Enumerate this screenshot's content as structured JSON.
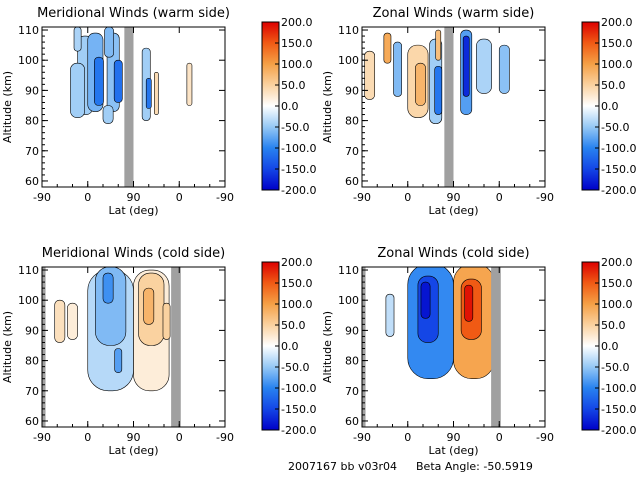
{
  "footer": {
    "run_id": "2007167 bb v03r04",
    "beta": "Beta Angle: -50.5919"
  },
  "chart_data": [
    {
      "type": "heatmap",
      "title": "Meridional Winds (warm side)",
      "xlabel": "Lat (deg)",
      "ylabel": "Altitude (km)",
      "x_ticks": [
        "-90",
        "0",
        "90",
        "0",
        "-90"
      ],
      "y_ticks": [
        "60",
        "70",
        "80",
        "90",
        "100",
        "110"
      ],
      "ylim": [
        58,
        111
      ],
      "colorbar": {
        "ticks": [
          "200.0",
          "150.0",
          "100.0",
          "50.0",
          "0.0",
          "-50.0",
          "-100.0",
          "-150.0",
          "-200.0"
        ],
        "range": [
          -200,
          200
        ]
      },
      "gray_bands": [
        [
          72,
          90
        ]
      ],
      "cells": [
        {
          "xc": -5,
          "yc": 95,
          "w": 30,
          "h": 26,
          "value": -45
        },
        {
          "xc": -20,
          "yc": 90,
          "w": 28,
          "h": 18,
          "value": -45
        },
        {
          "xc": 15,
          "yc": 96,
          "w": 30,
          "h": 26,
          "value": -65
        },
        {
          "xc": 22,
          "yc": 93,
          "w": 18,
          "h": 16,
          "value": -110
        },
        {
          "xc": 50,
          "yc": 96,
          "w": 24,
          "h": 26,
          "value": -55
        },
        {
          "xc": 60,
          "yc": 93,
          "w": 16,
          "h": 14,
          "value": -115
        },
        {
          "xc": 42,
          "yc": 106,
          "w": 18,
          "h": 10,
          "value": -60
        },
        {
          "xc": -20,
          "yc": 107,
          "w": 14,
          "h": 8,
          "value": -40
        },
        {
          "xc": 115,
          "yc": 92,
          "w": 16,
          "h": 24,
          "value": -45
        },
        {
          "xc": 120,
          "yc": 89,
          "w": 10,
          "h": 10,
          "value": -110
        },
        {
          "xc": 135,
          "yc": 89,
          "w": 8,
          "h": 14,
          "value": 40
        },
        {
          "xc": 200,
          "yc": 92,
          "w": 10,
          "h": 14,
          "value": 30
        },
        {
          "xc": 40,
          "yc": 82,
          "w": 20,
          "h": 6,
          "value": -45
        }
      ]
    },
    {
      "type": "heatmap",
      "title": "Zonal Winds (warm side)",
      "xlabel": "Lat (deg)",
      "ylabel": "Altitude (km)",
      "x_ticks": [
        "-90",
        "0",
        "90",
        "0",
        "-90"
      ],
      "y_ticks": [
        "60",
        "70",
        "80",
        "90",
        "100",
        "110"
      ],
      "ylim": [
        58,
        111
      ],
      "colorbar": {
        "ticks": [
          "200.0",
          "150.0",
          "100.0",
          "50.0",
          "0.0",
          "-50.0",
          "-100.0",
          "-150.0",
          "-200.0"
        ],
        "range": [
          -200,
          200
        ]
      },
      "gray_bands": [
        [
          72,
          90
        ]
      ],
      "cells": [
        {
          "xc": -75,
          "yc": 95,
          "w": 20,
          "h": 16,
          "value": 40
        },
        {
          "xc": -40,
          "yc": 104,
          "w": 14,
          "h": 10,
          "value": 90
        },
        {
          "xc": -20,
          "yc": 97,
          "w": 16,
          "h": 18,
          "value": -60
        },
        {
          "xc": 20,
          "yc": 93,
          "w": 40,
          "h": 24,
          "value": 45
        },
        {
          "xc": 25,
          "yc": 92,
          "w": 20,
          "h": 14,
          "value": 80
        },
        {
          "xc": 55,
          "yc": 93,
          "w": 24,
          "h": 28,
          "value": -45
        },
        {
          "xc": 60,
          "yc": 90,
          "w": 14,
          "h": 16,
          "value": -110
        },
        {
          "xc": 60,
          "yc": 105,
          "w": 10,
          "h": 10,
          "value": 70
        },
        {
          "xc": 115,
          "yc": 96,
          "w": 22,
          "h": 28,
          "value": -80
        },
        {
          "xc": 115,
          "yc": 98,
          "w": 12,
          "h": 20,
          "value": -170
        },
        {
          "xc": 150,
          "yc": 98,
          "w": 30,
          "h": 18,
          "value": -40
        },
        {
          "xc": 190,
          "yc": 97,
          "w": 20,
          "h": 16,
          "value": -55
        }
      ]
    },
    {
      "type": "heatmap",
      "title": "Meridional Winds (cold side)",
      "xlabel": "Lat (deg)",
      "ylabel": "Altitude (km)",
      "x_ticks": [
        "-90",
        "0",
        "90",
        "0",
        "-90"
      ],
      "y_ticks": [
        "60",
        "70",
        "80",
        "90",
        "100",
        "110"
      ],
      "ylim": [
        58,
        111
      ],
      "colorbar": {
        "ticks": [
          "200.0",
          "150.0",
          "100.0",
          "50.0",
          "0.0",
          "-50.0",
          "-100.0",
          "-150.0",
          "-200.0"
        ],
        "range": [
          -200,
          200
        ]
      },
      "gray_bands": [
        [
          -102,
          -83
        ],
        [
          164,
          183
        ]
      ],
      "cells": [
        {
          "xc": -55,
          "yc": 93,
          "w": 20,
          "h": 14,
          "value": 35
        },
        {
          "xc": -30,
          "yc": 93,
          "w": 20,
          "h": 12,
          "value": 20
        },
        {
          "xc": 45,
          "yc": 90,
          "w": 90,
          "h": 40,
          "value": -35
        },
        {
          "xc": 45,
          "yc": 98,
          "w": 60,
          "h": 26,
          "value": -60
        },
        {
          "xc": 40,
          "yc": 104,
          "w": 20,
          "h": 10,
          "value": -90
        },
        {
          "xc": 60,
          "yc": 80,
          "w": 14,
          "h": 8,
          "value": -80
        },
        {
          "xc": 125,
          "yc": 90,
          "w": 70,
          "h": 40,
          "value": 20
        },
        {
          "xc": 125,
          "yc": 97,
          "w": 50,
          "h": 24,
          "value": 50
        },
        {
          "xc": 120,
          "yc": 98,
          "w": 20,
          "h": 12,
          "value": 80
        },
        {
          "xc": 155,
          "yc": 93,
          "w": 14,
          "h": 12,
          "value": 50
        }
      ]
    },
    {
      "type": "heatmap",
      "title": "Zonal Winds (cold side)",
      "xlabel": "Lat (deg)",
      "ylabel": "Altitude (km)",
      "x_ticks": [
        "-90",
        "0",
        "90",
        "0",
        "-90"
      ],
      "y_ticks": [
        "60",
        "70",
        "80",
        "90",
        "100",
        "110"
      ],
      "ylim": [
        58,
        111
      ],
      "colorbar": {
        "ticks": [
          "200.0",
          "150.0",
          "100.0",
          "50.0",
          "0.0",
          "-50.0",
          "-100.0",
          "-150.0",
          "-200.0"
        ],
        "range": [
          -200,
          200
        ]
      },
      "gray_bands": [
        [
          -102,
          -83
        ],
        [
          164,
          183
        ]
      ],
      "cells": [
        {
          "xc": -35,
          "yc": 95,
          "w": 16,
          "h": 14,
          "value": -30
        },
        {
          "xc": 45,
          "yc": 93,
          "w": 90,
          "h": 38,
          "value": -95
        },
        {
          "xc": 40,
          "yc": 97,
          "w": 40,
          "h": 22,
          "value": -150
        },
        {
          "xc": 35,
          "yc": 100,
          "w": 18,
          "h": 12,
          "value": -185
        },
        {
          "xc": 130,
          "yc": 93,
          "w": 80,
          "h": 38,
          "value": 95
        },
        {
          "xc": 125,
          "yc": 97,
          "w": 40,
          "h": 20,
          "value": 150
        },
        {
          "xc": 120,
          "yc": 99,
          "w": 16,
          "h": 12,
          "value": 190
        }
      ]
    }
  ]
}
